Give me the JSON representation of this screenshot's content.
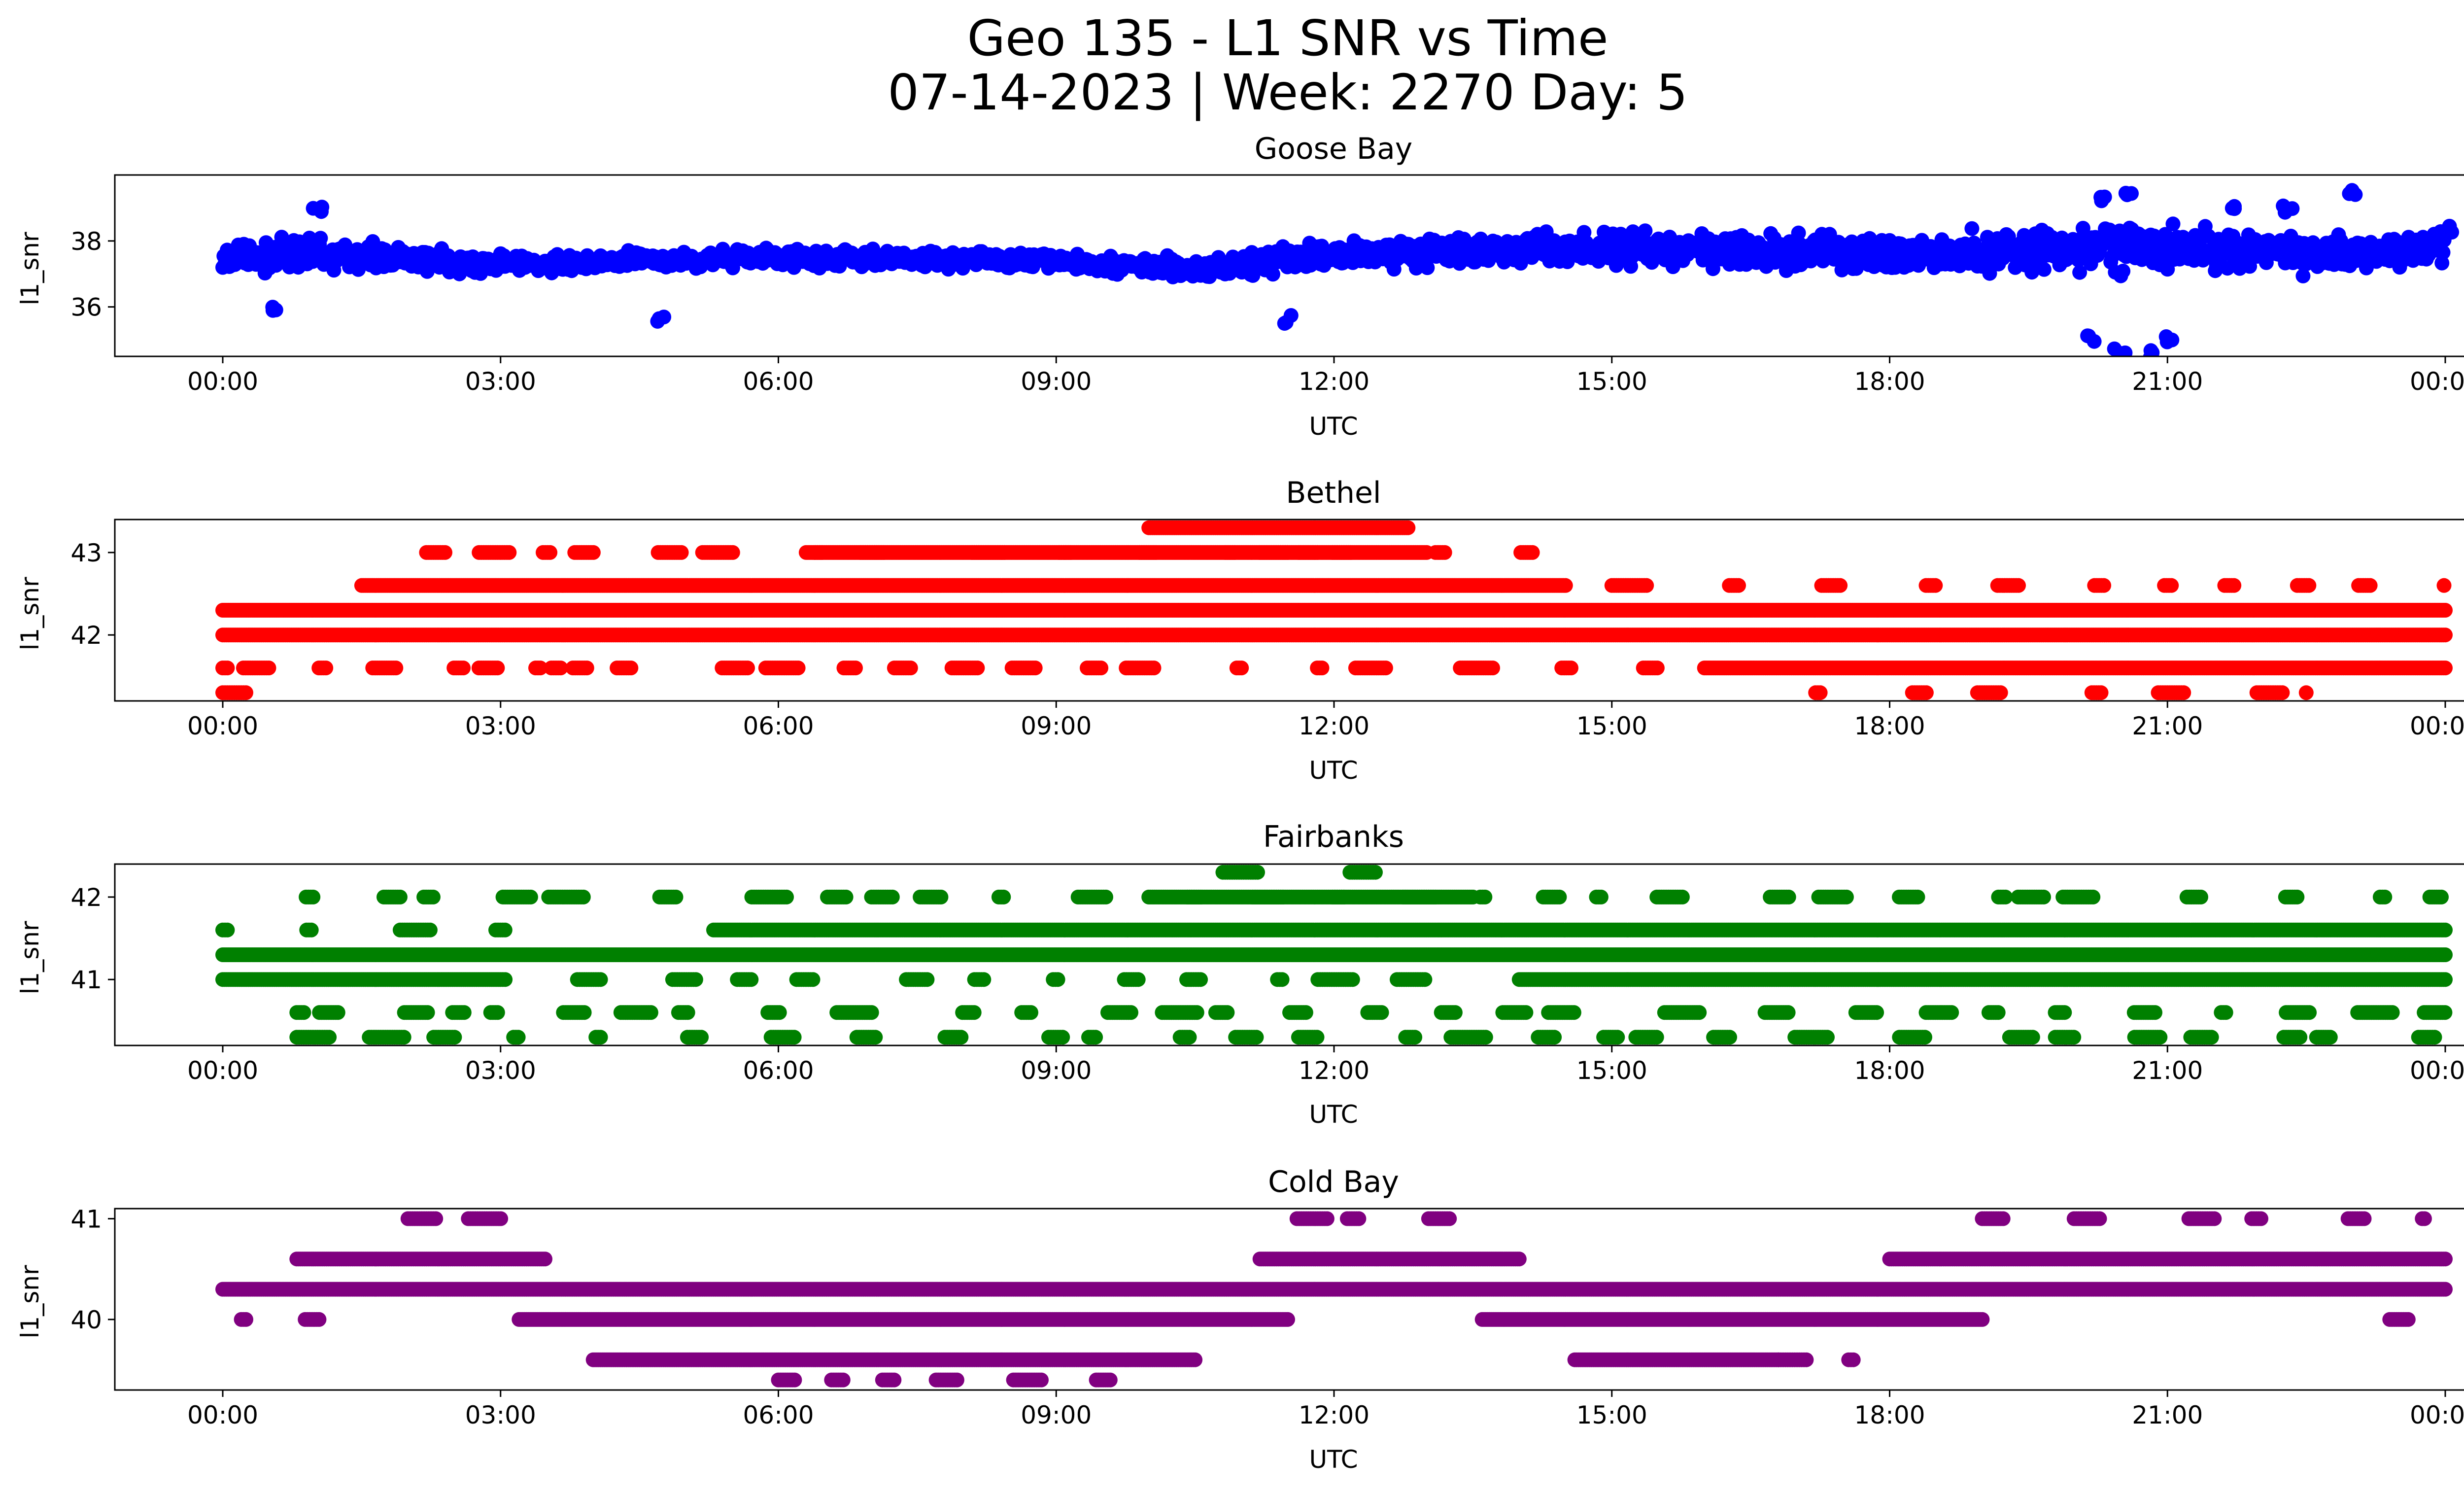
{
  "figure": {
    "title_line1": "Geo 135 - L1 SNR vs Time",
    "title_line2": "07-14-2023 | Week: 2270 Day: 5"
  },
  "chart_data": [
    {
      "type": "scatter",
      "title": "Goose Bay",
      "xlabel": "UTC",
      "ylabel": "l1_snr",
      "color": "#0000ff",
      "xlim": [
        "00:00",
        "24:00"
      ],
      "ylim": [
        34.5,
        40.0
      ],
      "x_ticks": [
        "00:00",
        "03:00",
        "06:00",
        "09:00",
        "12:00",
        "15:00",
        "18:00",
        "21:00",
        "00:00"
      ],
      "y_ticks": [
        36,
        38
      ],
      "grid": false,
      "series": [
        {
          "kind": "band-density",
          "mid_level": [
            [
              0,
              37.5
            ],
            [
              1,
              37.6
            ],
            [
              3,
              37.3
            ],
            [
              6,
              37.5
            ],
            [
              9,
              37.4
            ],
            [
              10.5,
              37.1
            ],
            [
              12,
              37.6
            ],
            [
              15,
              37.8
            ],
            [
              18,
              37.6
            ],
            [
              20,
              37.7
            ],
            [
              21,
              37.8
            ],
            [
              22.5,
              37.6
            ],
            [
              24,
              37.8
            ]
          ],
          "spread": [
            [
              0,
              0.6
            ],
            [
              1,
              0.7
            ],
            [
              3,
              0.4
            ],
            [
              9,
              0.35
            ],
            [
              12,
              0.6
            ],
            [
              16,
              0.7
            ],
            [
              19,
              0.8
            ],
            [
              20.3,
              1.0
            ],
            [
              21,
              1.0
            ],
            [
              22,
              0.8
            ],
            [
              24,
              0.6
            ]
          ],
          "low_excursions": [
            [
              0.6,
              36.0
            ],
            [
              4.7,
              35.6
            ],
            [
              11.5,
              35.6
            ],
            [
              20.2,
              35.0
            ],
            [
              20.5,
              34.6
            ],
            [
              20.8,
              34.6
            ],
            [
              21.0,
              35.0
            ]
          ],
          "high_excursions": [
            [
              1.0,
              39.0
            ],
            [
              20.3,
              39.2
            ],
            [
              20.6,
              39.5
            ],
            [
              21.7,
              39.1
            ],
            [
              22.3,
              39.0
            ],
            [
              24.0,
              38.4
            ],
            [
              23.0,
              39.4
            ]
          ]
        }
      ]
    },
    {
      "type": "scatter",
      "title": "Bethel",
      "xlabel": "UTC",
      "ylabel": "l1_snr",
      "color": "#ff0000",
      "xlim": [
        "00:00",
        "24:00"
      ],
      "ylim": [
        41.2,
        43.4
      ],
      "x_ticks": [
        "00:00",
        "03:00",
        "06:00",
        "09:00",
        "12:00",
        "15:00",
        "18:00",
        "21:00",
        "00:00"
      ],
      "y_ticks": [
        42,
        43
      ],
      "grid": false,
      "levels": [
        41.3,
        41.6,
        42.0,
        42.3,
        42.6,
        43.0,
        43.3
      ],
      "series": [
        {
          "kind": "quantized-levels",
          "continuous_bands": [
            [
              42.0,
              0,
              24
            ],
            [
              42.3,
              0,
              24
            ],
            [
              42.6,
              1.5,
              14.5
            ],
            [
              43.0,
              6.3,
              13.0
            ],
            [
              43.3,
              10.0,
              12.8
            ],
            [
              41.6,
              16.0,
              24
            ]
          ],
          "sparse_bands": [
            [
              41.6,
              0,
              15.5
            ],
            [
              42.6,
              15,
              24
            ],
            [
              43.0,
              2.2,
              14.4
            ],
            [
              41.3,
              0,
              0.8
            ],
            [
              41.3,
              17.2,
              22.5
            ]
          ]
        }
      ]
    },
    {
      "type": "scatter",
      "title": "Fairbanks",
      "xlabel": "UTC",
      "ylabel": "l1_snr",
      "color": "#008000",
      "xlim": [
        "00:00",
        "24:00"
      ],
      "ylim": [
        40.2,
        42.4
      ],
      "x_ticks": [
        "00:00",
        "03:00",
        "06:00",
        "09:00",
        "12:00",
        "15:00",
        "18:00",
        "21:00",
        "00:00"
      ],
      "y_ticks": [
        41,
        42
      ],
      "grid": false,
      "levels": [
        40.3,
        40.6,
        41.0,
        41.3,
        41.6,
        42.0,
        42.3
      ],
      "series": [
        {
          "kind": "quantized-levels",
          "continuous_bands": [
            [
              41.3,
              0,
              24
            ],
            [
              41.6,
              5.3,
              24
            ],
            [
              42.0,
              10.0,
              13.5
            ],
            [
              41.0,
              0,
              3.0
            ],
            [
              41.0,
              14.0,
              24
            ]
          ],
          "sparse_bands": [
            [
              41.6,
              0,
              3.4
            ],
            [
              41.0,
              3.0,
              13.0
            ],
            [
              42.0,
              0.9,
              24
            ],
            [
              40.6,
              0.8,
              24
            ],
            [
              42.3,
              10.8,
              13.0
            ],
            [
              40.3,
              0.8,
              23.9
            ]
          ]
        }
      ]
    },
    {
      "type": "scatter",
      "title": "Cold Bay",
      "xlabel": "UTC",
      "ylabel": "l1_snr",
      "color": "#800080",
      "xlim": [
        "00:00",
        "24:00"
      ],
      "ylim": [
        39.3,
        41.1
      ],
      "x_ticks": [
        "00:00",
        "03:00",
        "06:00",
        "09:00",
        "12:00",
        "15:00",
        "18:00",
        "21:00",
        "00:00"
      ],
      "y_ticks": [
        40,
        41
      ],
      "grid": false,
      "levels": [
        39.4,
        39.6,
        40.0,
        40.3,
        40.6,
        41.0
      ],
      "series": [
        {
          "kind": "quantized-levels",
          "continuous_bands": [
            [
              40.3,
              0,
              24
            ],
            [
              40.6,
              0.8,
              3.5
            ],
            [
              40.6,
              11.2,
              14.0
            ],
            [
              40.6,
              18.0,
              24
            ],
            [
              40.0,
              3.2,
              11.5
            ],
            [
              40.0,
              13.6,
              19.0
            ],
            [
              39.6,
              4.0,
              10.5
            ],
            [
              39.6,
              14.6,
              16.8
            ]
          ],
          "sparse_bands": [
            [
              40.0,
              0.2,
              1.2
            ],
            [
              40.0,
              23.4,
              24
            ],
            [
              41.0,
              2.0,
              3.1
            ],
            [
              41.0,
              11.6,
              13.5
            ],
            [
              41.0,
              19.0,
              23.8
            ],
            [
              39.4,
              6.0,
              9.7
            ],
            [
              39.6,
              16.8,
              18.0
            ]
          ]
        }
      ]
    }
  ]
}
